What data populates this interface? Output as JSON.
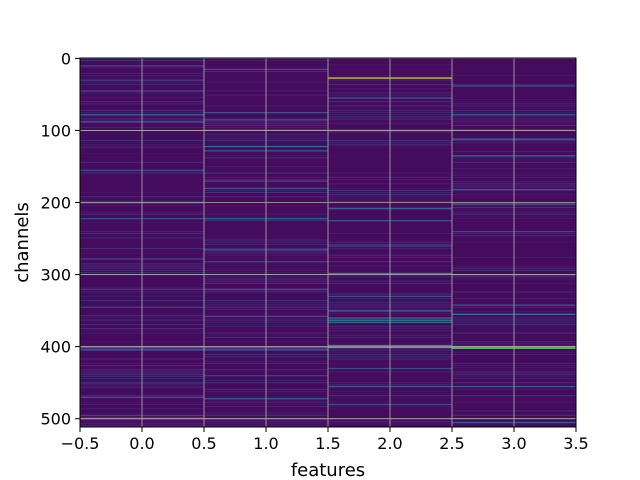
{
  "chart_data": {
    "type": "heatmap",
    "title": "",
    "xlabel": "features",
    "ylabel": "channels",
    "xlim": [
      -0.5,
      3.5
    ],
    "ylim": [
      511.5,
      -0.5
    ],
    "x_ticks": [
      -0.5,
      0.0,
      0.5,
      1.0,
      1.5,
      2.0,
      2.5,
      3.0,
      3.5
    ],
    "x_tick_labels": [
      "−0.5",
      "0.0",
      "0.5",
      "1.0",
      "1.5",
      "2.0",
      "2.5",
      "3.0",
      "3.5"
    ],
    "y_ticks": [
      0,
      100,
      200,
      300,
      400,
      500
    ],
    "y_tick_labels": [
      "0",
      "100",
      "200",
      "300",
      "400",
      "500"
    ],
    "grid": true,
    "colormap": "viridis",
    "n_columns": 4,
    "n_rows": 512,
    "background_value": 0.04,
    "columns": [
      {
        "feature": 0,
        "highlights": [
          {
            "row": 10,
            "value": 0.25
          },
          {
            "row": 30,
            "value": 0.22
          },
          {
            "row": 45,
            "value": 0.3
          },
          {
            "row": 78,
            "value": 0.45
          },
          {
            "row": 88,
            "value": 0.35
          },
          {
            "row": 155,
            "value": 0.3
          },
          {
            "row": 200,
            "value": 0.28
          },
          {
            "row": 222,
            "value": 0.3
          },
          {
            "row": 278,
            "value": 0.25
          },
          {
            "row": 320,
            "value": 0.22
          },
          {
            "row": 345,
            "value": 0.25
          },
          {
            "row": 401,
            "value": 0.5
          },
          {
            "row": 404,
            "value": 0.45
          },
          {
            "row": 450,
            "value": 0.22
          },
          {
            "row": 470,
            "value": 0.35
          },
          {
            "row": 495,
            "value": 0.25
          }
        ]
      },
      {
        "feature": 1,
        "highlights": [
          {
            "row": 15,
            "value": 0.3
          },
          {
            "row": 75,
            "value": 0.35
          },
          {
            "row": 85,
            "value": 0.3
          },
          {
            "row": 122,
            "value": 0.45
          },
          {
            "row": 128,
            "value": 0.4
          },
          {
            "row": 170,
            "value": 0.3
          },
          {
            "row": 180,
            "value": 0.35
          },
          {
            "row": 222,
            "value": 0.4
          },
          {
            "row": 265,
            "value": 0.28
          },
          {
            "row": 282,
            "value": 0.3
          },
          {
            "row": 320,
            "value": 0.3
          },
          {
            "row": 358,
            "value": 0.25
          },
          {
            "row": 401,
            "value": 0.5
          },
          {
            "row": 404,
            "value": 0.45
          },
          {
            "row": 440,
            "value": 0.25
          },
          {
            "row": 472,
            "value": 0.38
          },
          {
            "row": 500,
            "value": 0.3
          }
        ]
      },
      {
        "feature": 2,
        "highlights": [
          {
            "row": 27,
            "value": 0.95
          },
          {
            "row": 55,
            "value": 0.3
          },
          {
            "row": 208,
            "value": 0.4
          },
          {
            "row": 225,
            "value": 0.35
          },
          {
            "row": 260,
            "value": 0.3
          },
          {
            "row": 298,
            "value": 0.55
          },
          {
            "row": 330,
            "value": 0.3
          },
          {
            "row": 350,
            "value": 0.4
          },
          {
            "row": 360,
            "value": 0.5
          },
          {
            "row": 363,
            "value": 0.55
          },
          {
            "row": 366,
            "value": 0.45
          },
          {
            "row": 398,
            "value": 0.6
          },
          {
            "row": 401,
            "value": 0.75
          },
          {
            "row": 430,
            "value": 0.3
          },
          {
            "row": 455,
            "value": 0.35
          },
          {
            "row": 480,
            "value": 0.3
          }
        ]
      },
      {
        "feature": 3,
        "highlights": [
          {
            "row": 38,
            "value": 0.35
          },
          {
            "row": 78,
            "value": 0.4
          },
          {
            "row": 112,
            "value": 0.35
          },
          {
            "row": 135,
            "value": 0.45
          },
          {
            "row": 182,
            "value": 0.4
          },
          {
            "row": 202,
            "value": 0.38
          },
          {
            "row": 240,
            "value": 0.28
          },
          {
            "row": 300,
            "value": 0.3
          },
          {
            "row": 342,
            "value": 0.35
          },
          {
            "row": 355,
            "value": 0.45
          },
          {
            "row": 400,
            "value": 0.88
          },
          {
            "row": 402,
            "value": 0.8
          },
          {
            "row": 455,
            "value": 0.4
          },
          {
            "row": 505,
            "value": 0.38
          }
        ]
      }
    ]
  }
}
